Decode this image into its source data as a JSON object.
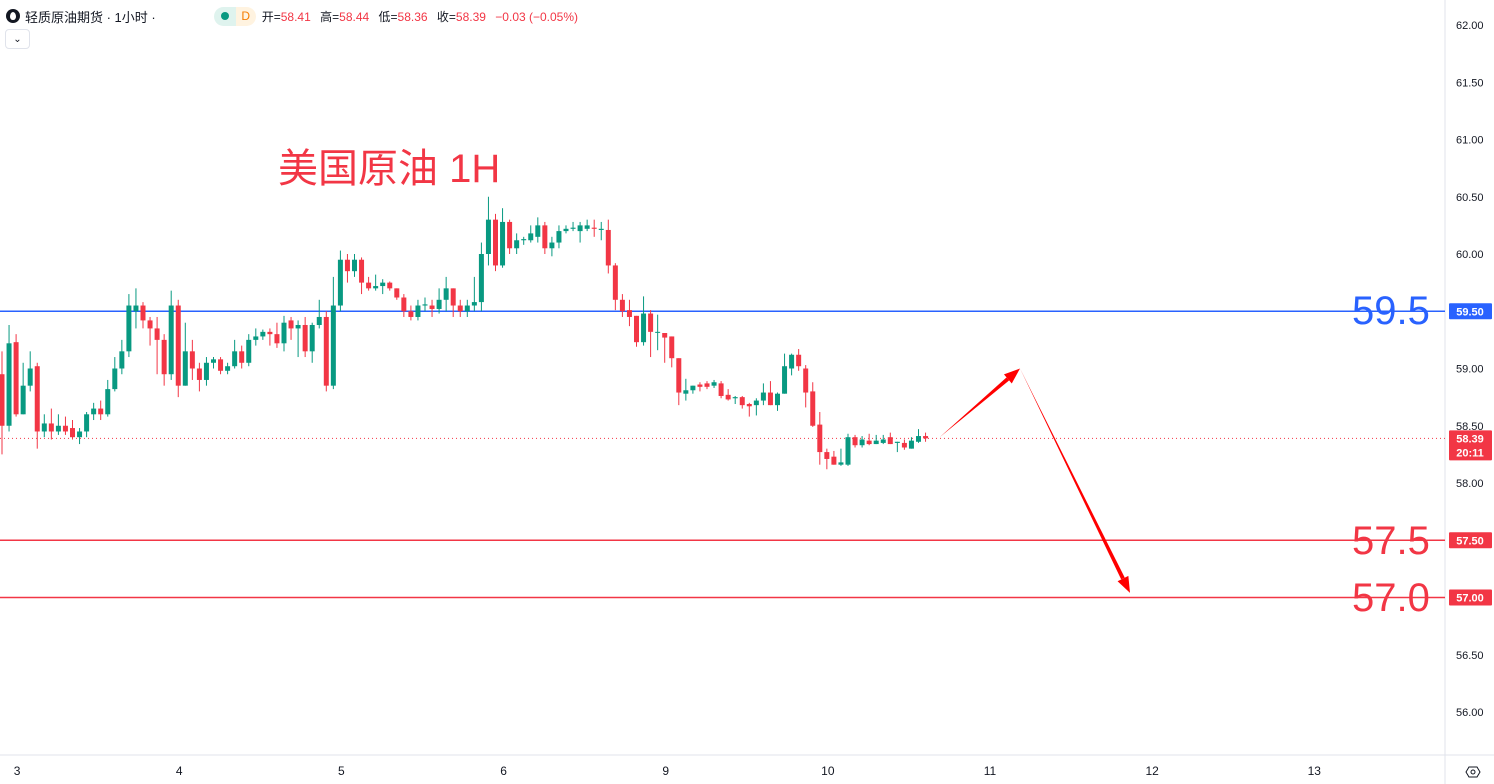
{
  "header": {
    "symbol_title": "轻质原油期货 · 1小时 ·",
    "status_badge": "D",
    "ohlc": [
      {
        "label": "开=",
        "value": "58.41"
      },
      {
        "label": "高=",
        "value": "58.44"
      },
      {
        "label": "低=",
        "value": "58.36"
      },
      {
        "label": "收=",
        "value": "58.39"
      }
    ],
    "change": "−0.03 (−0.05%)",
    "collapse_icon": "chevron-down-icon"
  },
  "annotation": "美国原油 1H",
  "level_labels": {
    "blue": "59.5",
    "red1": "57.5",
    "red2": "57.0"
  },
  "last_price": {
    "price": "58.39",
    "countdown": "20:11"
  },
  "settings_icon": "gear-icon",
  "colors": {
    "up": "#089981",
    "down": "#f23645",
    "blue_line": "#2962ff",
    "red_line": "#f23645",
    "arrow": "#ff0000"
  },
  "chart_data": {
    "type": "candlestick",
    "title": "",
    "ylim": [
      55.62,
      62.22
    ],
    "yticks": [
      "56.00",
      "56.50",
      "57.00",
      "57.50",
      "58.00",
      "58.50",
      "59.00",
      "59.50",
      "60.00",
      "60.50",
      "61.00",
      "61.50",
      "62.00"
    ],
    "xticks": [
      {
        "label": "3",
        "bar": 2
      },
      {
        "label": "4",
        "bar": 25
      },
      {
        "label": "5",
        "bar": 48
      },
      {
        "label": "6",
        "bar": 71
      },
      {
        "label": "9",
        "bar": 94
      },
      {
        "label": "10",
        "bar": 117
      },
      {
        "label": "11",
        "bar": 140
      },
      {
        "label": "12",
        "bar": 163
      },
      {
        "label": "13",
        "bar": 186
      }
    ],
    "bars_total_visible": 205,
    "ohlc": [
      [
        58.95,
        59.15,
        58.25,
        58.5
      ],
      [
        58.5,
        59.38,
        58.45,
        59.22
      ],
      [
        59.23,
        59.3,
        58.58,
        58.6
      ],
      [
        58.6,
        59.05,
        58.6,
        58.85
      ],
      [
        58.85,
        59.15,
        58.8,
        59.0
      ],
      [
        59.02,
        59.05,
        58.3,
        58.45
      ],
      [
        58.45,
        58.6,
        58.4,
        58.52
      ],
      [
        58.52,
        58.65,
        58.38,
        58.45
      ],
      [
        58.45,
        58.6,
        58.42,
        58.5
      ],
      [
        58.5,
        58.58,
        58.42,
        58.45
      ],
      [
        58.48,
        58.55,
        58.38,
        58.4
      ],
      [
        58.4,
        58.48,
        58.34,
        58.45
      ],
      [
        58.45,
        58.62,
        58.4,
        58.6
      ],
      [
        58.6,
        58.7,
        58.55,
        58.65
      ],
      [
        58.65,
        58.72,
        58.55,
        58.6
      ],
      [
        58.6,
        58.9,
        58.58,
        58.82
      ],
      [
        58.82,
        59.1,
        58.8,
        59.0
      ],
      [
        59.0,
        59.25,
        58.95,
        59.15
      ],
      [
        59.15,
        59.65,
        59.1,
        59.55
      ],
      [
        59.5,
        59.7,
        59.35,
        59.55
      ],
      [
        59.55,
        59.58,
        59.35,
        59.42
      ],
      [
        59.42,
        59.45,
        59.2,
        59.35
      ],
      [
        59.35,
        59.45,
        58.95,
        59.25
      ],
      [
        59.25,
        59.3,
        58.85,
        58.95
      ],
      [
        58.95,
        59.68,
        58.9,
        59.55
      ],
      [
        59.55,
        59.6,
        58.75,
        58.85
      ],
      [
        58.85,
        59.4,
        58.85,
        59.15
      ],
      [
        59.15,
        59.25,
        58.9,
        59.0
      ],
      [
        59.0,
        59.05,
        58.8,
        58.9
      ],
      [
        58.9,
        59.1,
        58.85,
        59.05
      ],
      [
        59.05,
        59.1,
        59.0,
        59.08
      ],
      [
        59.08,
        59.1,
        58.95,
        58.98
      ],
      [
        58.98,
        59.05,
        58.95,
        59.02
      ],
      [
        59.02,
        59.25,
        59.0,
        59.15
      ],
      [
        59.15,
        59.2,
        59.0,
        59.05
      ],
      [
        59.05,
        59.3,
        59.02,
        59.25
      ],
      [
        59.25,
        59.35,
        59.2,
        59.28
      ],
      [
        59.28,
        59.34,
        59.25,
        59.32
      ],
      [
        59.32,
        59.35,
        59.2,
        59.3
      ],
      [
        59.3,
        59.4,
        59.18,
        59.22
      ],
      [
        59.22,
        59.46,
        59.15,
        59.4
      ],
      [
        59.42,
        59.45,
        59.25,
        59.35
      ],
      [
        59.35,
        59.42,
        59.1,
        59.38
      ],
      [
        59.38,
        59.45,
        59.1,
        59.15
      ],
      [
        59.15,
        59.4,
        59.05,
        59.38
      ],
      [
        59.38,
        59.6,
        59.35,
        59.45
      ],
      [
        59.45,
        59.5,
        58.8,
        58.85
      ],
      [
        58.85,
        59.8,
        58.82,
        59.55
      ],
      [
        59.55,
        60.03,
        59.5,
        59.95
      ],
      [
        59.95,
        60.0,
        59.75,
        59.85
      ],
      [
        59.85,
        60.0,
        59.8,
        59.95
      ],
      [
        59.95,
        59.97,
        59.65,
        59.75
      ],
      [
        59.75,
        59.8,
        59.68,
        59.7
      ],
      [
        59.7,
        59.82,
        59.68,
        59.72
      ],
      [
        59.72,
        59.78,
        59.65,
        59.75
      ],
      [
        59.75,
        59.76,
        59.68,
        59.7
      ],
      [
        59.7,
        59.7,
        59.6,
        59.62
      ],
      [
        59.62,
        59.65,
        59.45,
        59.5
      ],
      [
        59.5,
        59.55,
        59.42,
        59.45
      ],
      [
        59.45,
        59.6,
        59.42,
        59.55
      ],
      [
        59.55,
        59.62,
        59.5,
        59.56
      ],
      [
        59.55,
        59.6,
        59.45,
        59.52
      ],
      [
        59.52,
        59.7,
        59.48,
        59.6
      ],
      [
        59.6,
        59.8,
        59.5,
        59.7
      ],
      [
        59.7,
        59.7,
        59.45,
        59.55
      ],
      [
        59.55,
        59.6,
        59.45,
        59.5
      ],
      [
        59.5,
        59.6,
        59.45,
        59.55
      ],
      [
        59.55,
        59.8,
        59.5,
        59.58
      ],
      [
        59.58,
        60.1,
        59.5,
        60.0
      ],
      [
        60.0,
        60.5,
        59.9,
        60.3
      ],
      [
        60.3,
        60.35,
        59.85,
        59.9
      ],
      [
        59.9,
        60.4,
        59.88,
        60.28
      ],
      [
        60.28,
        60.3,
        60.0,
        60.05
      ],
      [
        60.05,
        60.18,
        60.0,
        60.12
      ],
      [
        60.12,
        60.15,
        60.08,
        60.13
      ],
      [
        60.12,
        60.25,
        60.1,
        60.18
      ],
      [
        60.15,
        60.32,
        60.1,
        60.25
      ],
      [
        60.25,
        60.28,
        60.0,
        60.05
      ],
      [
        60.05,
        60.15,
        59.98,
        60.1
      ],
      [
        60.1,
        60.25,
        60.05,
        60.2
      ],
      [
        60.2,
        60.25,
        60.18,
        60.22
      ],
      [
        60.22,
        60.28,
        60.2,
        60.23
      ],
      [
        60.2,
        60.28,
        60.1,
        60.25
      ],
      [
        60.22,
        60.3,
        60.2,
        60.25
      ],
      [
        60.23,
        60.3,
        60.15,
        60.22
      ],
      [
        60.21,
        60.28,
        60.12,
        60.22
      ],
      [
        60.21,
        60.3,
        59.83,
        59.9
      ],
      [
        59.9,
        59.92,
        59.51,
        59.6
      ],
      [
        59.6,
        59.65,
        59.45,
        59.5
      ],
      [
        59.51,
        59.6,
        59.37,
        59.45
      ],
      [
        59.46,
        59.46,
        59.19,
        59.23
      ],
      [
        59.23,
        59.63,
        59.2,
        59.48
      ],
      [
        59.48,
        59.51,
        59.1,
        59.32
      ],
      [
        59.32,
        59.47,
        59.16,
        59.32
      ],
      [
        59.31,
        59.31,
        59.05,
        59.27
      ],
      [
        59.28,
        59.28,
        59.01,
        59.09
      ],
      [
        59.09,
        59.09,
        58.68,
        58.79
      ],
      [
        58.78,
        58.91,
        58.72,
        58.81
      ],
      [
        58.81,
        58.85,
        58.78,
        58.85
      ],
      [
        58.86,
        58.88,
        58.8,
        58.84
      ],
      [
        58.87,
        58.89,
        58.82,
        58.84
      ],
      [
        58.85,
        58.9,
        58.83,
        58.88
      ],
      [
        58.87,
        58.89,
        58.74,
        58.76
      ],
      [
        58.77,
        58.82,
        58.72,
        58.73
      ],
      [
        58.74,
        58.76,
        58.69,
        58.75
      ],
      [
        58.75,
        58.76,
        58.65,
        58.68
      ],
      [
        58.69,
        58.7,
        58.58,
        58.67
      ],
      [
        58.68,
        58.74,
        58.59,
        58.72
      ],
      [
        58.72,
        58.87,
        58.68,
        58.79
      ],
      [
        58.79,
        58.89,
        58.68,
        58.68
      ],
      [
        58.68,
        58.79,
        58.63,
        58.78
      ],
      [
        58.78,
        59.13,
        58.78,
        59.02
      ],
      [
        59.0,
        59.13,
        58.94,
        59.12
      ],
      [
        59.12,
        59.17,
        58.98,
        59.02
      ],
      [
        59.0,
        59.03,
        58.66,
        58.79
      ],
      [
        58.8,
        58.88,
        58.49,
        58.5
      ],
      [
        58.51,
        58.62,
        58.16,
        58.27
      ],
      [
        58.27,
        58.3,
        58.12,
        58.21
      ],
      [
        58.23,
        58.28,
        58.16,
        58.16
      ],
      [
        58.16,
        58.3,
        58.15,
        58.18
      ],
      [
        58.16,
        58.43,
        58.15,
        58.4
      ],
      [
        58.4,
        58.42,
        58.31,
        58.33
      ],
      [
        58.33,
        58.41,
        58.31,
        58.38
      ],
      [
        58.37,
        58.43,
        58.33,
        58.34
      ],
      [
        58.34,
        58.42,
        58.34,
        58.37
      ],
      [
        58.35,
        58.42,
        58.34,
        58.38
      ],
      [
        58.4,
        58.44,
        58.34,
        58.34
      ],
      [
        58.35,
        58.36,
        58.27,
        58.36
      ],
      [
        58.35,
        58.38,
        58.29,
        58.31
      ],
      [
        58.3,
        58.4,
        58.3,
        58.37
      ],
      [
        58.36,
        58.47,
        58.35,
        58.41
      ],
      [
        58.41,
        58.44,
        58.36,
        58.39
      ]
    ],
    "horizontal_lines": [
      {
        "price": 59.5,
        "color": "#2962ff",
        "tag": "59.50"
      },
      {
        "price": 57.5,
        "color": "#f23645",
        "tag": "57.50"
      },
      {
        "price": 57.0,
        "color": "#f23645",
        "tag": "57.00"
      }
    ],
    "last_price_line": 58.39,
    "arrows": [
      {
        "from": {
          "bar": 133,
          "price": 58.4
        },
        "to": {
          "bar": 144.4,
          "price": 59.0
        }
      },
      {
        "from": {
          "bar": 144.4,
          "price": 59.0
        },
        "to": {
          "bar": 160,
          "price": 57.04
        }
      }
    ]
  }
}
